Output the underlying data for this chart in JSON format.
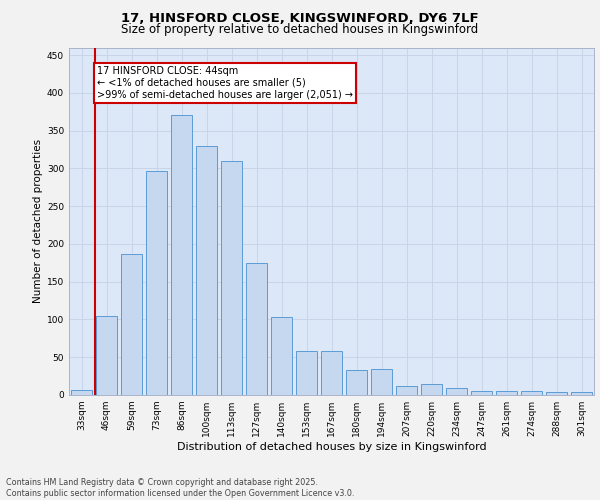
{
  "title1": "17, HINSFORD CLOSE, KINGSWINFORD, DY6 7LF",
  "title2": "Size of property relative to detached houses in Kingswinford",
  "xlabel": "Distribution of detached houses by size in Kingswinford",
  "ylabel": "Number of detached properties",
  "categories": [
    "33sqm",
    "46sqm",
    "59sqm",
    "73sqm",
    "86sqm",
    "100sqm",
    "113sqm",
    "127sqm",
    "140sqm",
    "153sqm",
    "167sqm",
    "180sqm",
    "194sqm",
    "207sqm",
    "220sqm",
    "234sqm",
    "247sqm",
    "261sqm",
    "274sqm",
    "288sqm",
    "301sqm"
  ],
  "values": [
    7,
    104,
    186,
    297,
    370,
    330,
    310,
    175,
    103,
    58,
    58,
    33,
    34,
    12,
    15,
    9,
    5,
    5,
    5,
    4,
    4
  ],
  "bar_color": "#c5d8f0",
  "bar_edge_color": "#5b9bd5",
  "annotation_text_line1": "17 HINSFORD CLOSE: 44sqm",
  "annotation_text_line2": "← <1% of detached houses are smaller (5)",
  "annotation_text_line3": ">99% of semi-detached houses are larger (2,051) →",
  "annotation_box_facecolor": "#ffffff",
  "annotation_box_edgecolor": "#cc0000",
  "red_line_color": "#cc0000",
  "ylim": [
    0,
    460
  ],
  "yticks": [
    0,
    50,
    100,
    150,
    200,
    250,
    300,
    350,
    400,
    450
  ],
  "grid_color": "#c8d4e8",
  "background_color": "#dce8f8",
  "fig_facecolor": "#f2f2f2",
  "footer_line1": "Contains HM Land Registry data © Crown copyright and database right 2025.",
  "footer_line2": "Contains public sector information licensed under the Open Government Licence v3.0.",
  "title1_fontsize": 9.5,
  "title2_fontsize": 8.5,
  "xlabel_fontsize": 8,
  "ylabel_fontsize": 7.5,
  "tick_fontsize": 6.5,
  "annotation_fontsize": 7,
  "footer_fontsize": 5.8
}
